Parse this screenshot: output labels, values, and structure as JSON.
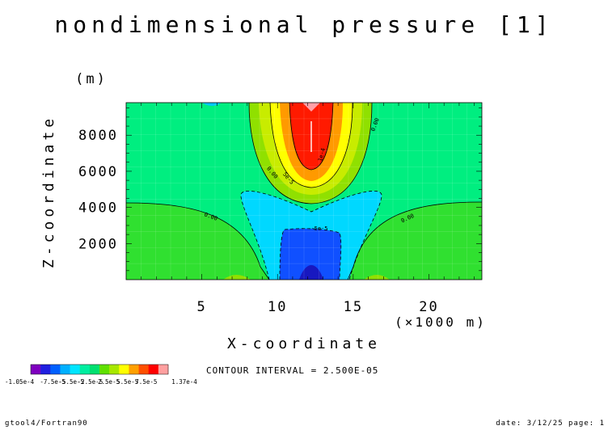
{
  "chart_data": {
    "type": "contour",
    "title": "nondimensional pressure [1]",
    "xlabel": "X-coordinate",
    "x_unit": "(×1000 m)",
    "ylabel": "Z-coordinate",
    "y_unit": "(m)",
    "xlim": [
      0,
      23.5
    ],
    "ylim": [
      0,
      9800
    ],
    "x_ticks": [
      "5",
      "10",
      "15",
      "20"
    ],
    "y_ticks": [
      "2000",
      "4000",
      "6000",
      "8000"
    ],
    "contour_interval_text": "CONTOUR INTERVAL = 2.500E-05",
    "contour_labels": [
      "0.00",
      "0.00",
      "0.00",
      "0.00",
      "-5e-5",
      "5e-5",
      "1e-4"
    ],
    "colorbar": {
      "colors": [
        "#7f00bf",
        "#2020e0",
        "#0060ff",
        "#00b0ff",
        "#00e5ff",
        "#00eea0",
        "#00e070",
        "#60e000",
        "#a8e800",
        "#ffff00",
        "#ffa000",
        "#ff5000",
        "#ff0000",
        "#ffa0a0"
      ],
      "tick_labels": [
        "-1.05e-4",
        "-7.5e-5",
        "-5.5e-5",
        "-2.5e-5",
        "2.5e-5",
        "5.5e-5",
        "7.5e-5",
        "1.37e-4"
      ]
    }
  },
  "footer": {
    "left": "gtool4/Fortran90",
    "right": "date: 3/12/25 page: 1"
  }
}
